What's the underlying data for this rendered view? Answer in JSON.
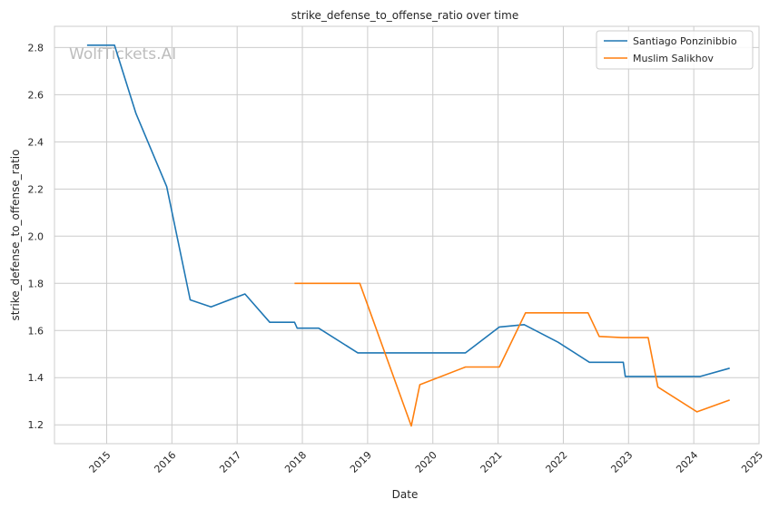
{
  "chart_data": {
    "type": "line",
    "title": "strike_defense_to_offense_ratio over time",
    "xlabel": "Date",
    "ylabel": "strike_defense_to_offense_ratio",
    "watermark": "WolfTickets.AI",
    "xlim": [
      2014.2,
      2025.0
    ],
    "ylim": [
      1.12,
      2.89
    ],
    "x_ticks": [
      2015,
      2016,
      2017,
      2018,
      2019,
      2020,
      2021,
      2022,
      2023,
      2024,
      2025
    ],
    "x_tick_labels": [
      "2015",
      "2016",
      "2017",
      "2018",
      "2019",
      "2020",
      "2021",
      "2022",
      "2023",
      "2024",
      "2025"
    ],
    "y_ticks": [
      1.2,
      1.4,
      1.6,
      1.8,
      2.0,
      2.2,
      2.4,
      2.6,
      2.8
    ],
    "y_tick_labels": [
      "1.2",
      "1.4",
      "1.6",
      "1.8",
      "2.0",
      "2.2",
      "2.4",
      "2.6",
      "2.8"
    ],
    "grid": true,
    "legend_position": "top-right",
    "series": [
      {
        "name": "Santiago Ponzinibbio",
        "color": "#1f77b4",
        "points": [
          [
            2014.7,
            2.81
          ],
          [
            2015.12,
            2.81
          ],
          [
            2015.45,
            2.52
          ],
          [
            2015.92,
            2.21
          ],
          [
            2016.28,
            1.73
          ],
          [
            2016.6,
            1.7
          ],
          [
            2017.12,
            1.755
          ],
          [
            2017.5,
            1.635
          ],
          [
            2017.88,
            1.635
          ],
          [
            2017.92,
            1.61
          ],
          [
            2018.25,
            1.61
          ],
          [
            2018.85,
            1.505
          ],
          [
            2019.5,
            1.505
          ],
          [
            2020.5,
            1.505
          ],
          [
            2021.02,
            1.615
          ],
          [
            2021.4,
            1.625
          ],
          [
            2021.92,
            1.55
          ],
          [
            2022.4,
            1.465
          ],
          [
            2022.92,
            1.465
          ],
          [
            2022.95,
            1.405
          ],
          [
            2023.5,
            1.405
          ],
          [
            2024.1,
            1.405
          ],
          [
            2024.55,
            1.44
          ]
        ]
      },
      {
        "name": "Muslim Salikhov",
        "color": "#ff7f0e",
        "points": [
          [
            2017.88,
            1.8
          ],
          [
            2018.88,
            1.8
          ],
          [
            2019.67,
            1.195
          ],
          [
            2019.8,
            1.37
          ],
          [
            2020.5,
            1.445
          ],
          [
            2021.02,
            1.445
          ],
          [
            2021.42,
            1.675
          ],
          [
            2022.38,
            1.675
          ],
          [
            2022.55,
            1.575
          ],
          [
            2022.9,
            1.57
          ],
          [
            2023.3,
            1.57
          ],
          [
            2023.45,
            1.36
          ],
          [
            2024.05,
            1.255
          ],
          [
            2024.55,
            1.305
          ]
        ]
      }
    ]
  }
}
